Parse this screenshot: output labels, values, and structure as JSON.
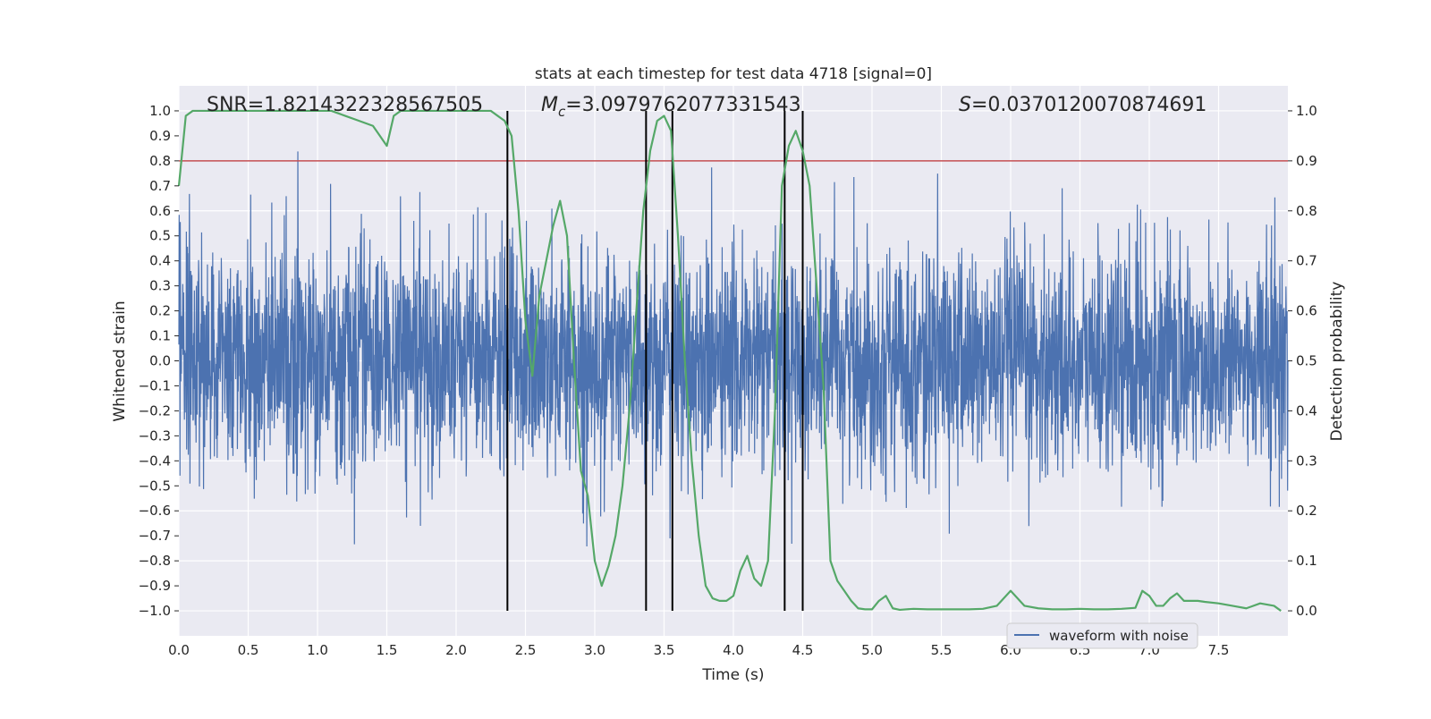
{
  "chart_data": {
    "type": "line",
    "title": "stats at each timestep for test data 4718 [signal=0]",
    "xlabel": "Time (s)",
    "ylabel_left": "Whitened strain",
    "ylabel_right": "Detection probability",
    "xlim": [
      0.0,
      8.0
    ],
    "ylim_left": [
      -1.1,
      1.1
    ],
    "ylim_right": [
      -0.05,
      1.05
    ],
    "x_ticks": [
      "0.0",
      "0.5",
      "1.0",
      "1.5",
      "2.0",
      "2.5",
      "3.0",
      "3.5",
      "4.0",
      "4.5",
      "5.0",
      "5.5",
      "6.0",
      "6.5",
      "7.0",
      "7.5"
    ],
    "y_left_ticks": [
      "1.0",
      "0.9",
      "0.8",
      "0.7",
      "0.6",
      "0.5",
      "0.4",
      "0.3",
      "0.2",
      "0.1",
      "0.0",
      "−0.1",
      "−0.2",
      "−0.3",
      "−0.4",
      "−0.5",
      "−0.6",
      "−0.7",
      "−0.8",
      "−0.9",
      "−1.0"
    ],
    "y_right_ticks": [
      "1.0",
      "0.9",
      "0.8",
      "0.7",
      "0.6",
      "0.5",
      "0.4",
      "0.3",
      "0.2",
      "0.1",
      "0.0"
    ],
    "grid": true,
    "legend_placement": "lower-right",
    "annotations": {
      "snr": "SNR=1.8214322328567505",
      "mc_symbol": "M",
      "mc_sub": "c",
      "mc_value": "=3.0979762077331543",
      "s_symbol": "S",
      "s_value": "=0.0370120070874691"
    },
    "series": [
      {
        "name": "waveform with noise",
        "color": "#4c72b0",
        "axis": "left",
        "description": "dense noise band, core amplitude about ±0.4 with spikes up to about ±1.0"
      },
      {
        "color": "#55a868",
        "axis": "right",
        "x": [
          0.0,
          0.05,
          0.1,
          0.2,
          0.3,
          0.4,
          0.5,
          0.6,
          0.7,
          0.8,
          0.9,
          1.0,
          1.1,
          1.2,
          1.3,
          1.4,
          1.45,
          1.5,
          1.55,
          1.6,
          1.7,
          1.8,
          1.9,
          2.0,
          2.1,
          2.2,
          2.25,
          2.3,
          2.35,
          2.4,
          2.45,
          2.5,
          2.55,
          2.6,
          2.65,
          2.7,
          2.75,
          2.8,
          2.85,
          2.9,
          2.95,
          3.0,
          3.05,
          3.1,
          3.15,
          3.2,
          3.25,
          3.3,
          3.35,
          3.4,
          3.45,
          3.5,
          3.55,
          3.6,
          3.65,
          3.7,
          3.75,
          3.8,
          3.85,
          3.9,
          3.95,
          4.0,
          4.05,
          4.1,
          4.15,
          4.2,
          4.25,
          4.3,
          4.35,
          4.4,
          4.45,
          4.5,
          4.55,
          4.6,
          4.65,
          4.7,
          4.75,
          4.8,
          4.85,
          4.9,
          4.95,
          5.0,
          5.05,
          5.1,
          5.15,
          5.2,
          5.3,
          5.4,
          5.5,
          5.6,
          5.7,
          5.8,
          5.9,
          6.0,
          6.1,
          6.2,
          6.3,
          6.4,
          6.5,
          6.6,
          6.7,
          6.8,
          6.9,
          6.95,
          7.0,
          7.05,
          7.1,
          7.15,
          7.2,
          7.25,
          7.3,
          7.35,
          7.4,
          7.5,
          7.6,
          7.7,
          7.8,
          7.9,
          7.95
        ],
        "values": [
          0.85,
          0.99,
          1.0,
          1.0,
          1.0,
          1.0,
          1.0,
          1.0,
          1.0,
          1.0,
          1.0,
          1.0,
          1.0,
          0.99,
          0.98,
          0.97,
          0.95,
          0.93,
          0.99,
          1.0,
          1.0,
          1.0,
          1.0,
          1.0,
          1.0,
          1.0,
          1.0,
          0.99,
          0.98,
          0.95,
          0.8,
          0.58,
          0.47,
          0.63,
          0.7,
          0.77,
          0.82,
          0.75,
          0.5,
          0.28,
          0.23,
          0.1,
          0.05,
          0.09,
          0.15,
          0.25,
          0.4,
          0.6,
          0.8,
          0.92,
          0.98,
          0.99,
          0.96,
          0.75,
          0.5,
          0.3,
          0.15,
          0.05,
          0.025,
          0.02,
          0.02,
          0.03,
          0.08,
          0.11,
          0.065,
          0.05,
          0.1,
          0.4,
          0.85,
          0.93,
          0.96,
          0.92,
          0.85,
          0.65,
          0.45,
          0.1,
          0.06,
          0.04,
          0.02,
          0.005,
          0.003,
          0.003,
          0.02,
          0.03,
          0.005,
          0.002,
          0.004,
          0.003,
          0.003,
          0.003,
          0.003,
          0.004,
          0.01,
          0.04,
          0.01,
          0.005,
          0.003,
          0.003,
          0.004,
          0.003,
          0.003,
          0.004,
          0.006,
          0.04,
          0.03,
          0.01,
          0.01,
          0.025,
          0.035,
          0.02,
          0.02,
          0.02,
          0.018,
          0.015,
          0.01,
          0.005,
          0.015,
          0.01,
          0.0
        ]
      },
      {
        "color": "#c44e52",
        "axis": "left",
        "kind": "horizontal-line",
        "y": 0.8
      }
    ],
    "vertical_markers": {
      "color": "#000000",
      "x": [
        2.37,
        3.37,
        3.56,
        4.37,
        4.5
      ]
    }
  }
}
